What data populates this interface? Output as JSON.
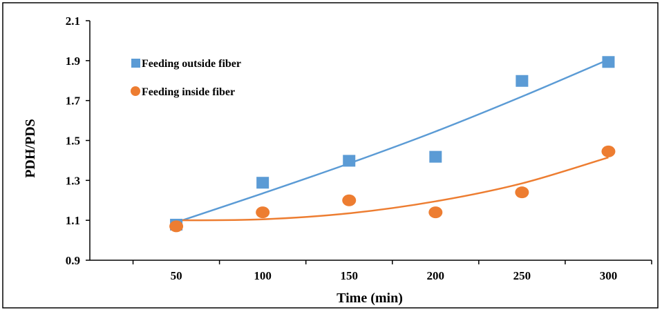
{
  "chart_data": {
    "type": "scatter",
    "xlabel": "Time (min)",
    "ylabel": "PDH/PDS",
    "x": [
      50,
      100,
      150,
      200,
      250,
      300
    ],
    "xlim": [
      0,
      325
    ],
    "ylim": [
      0.9,
      2.1
    ],
    "xticks": [
      "50",
      "100",
      "150",
      "200",
      "250",
      "300"
    ],
    "yticks": [
      "0.9",
      "1.1",
      "1.3",
      "1.5",
      "1.7",
      "1.9",
      "2.1"
    ],
    "grid": false,
    "legend_position": "top-left",
    "series": [
      {
        "name": "Feeding outside fiber",
        "marker": "square",
        "color": "#5b9bd5",
        "values": [
          1.08,
          1.29,
          1.4,
          1.42,
          1.8,
          1.895
        ],
        "trendline": "polynomial",
        "trend_values": [
          1.09,
          1.235,
          1.385,
          1.545,
          1.72,
          1.905
        ]
      },
      {
        "name": "Feeding inside fiber",
        "marker": "circle",
        "color": "#ed7d31",
        "values": [
          1.07,
          1.14,
          1.2,
          1.14,
          1.24,
          1.445
        ],
        "trendline": "polynomial",
        "trend_values": [
          1.1,
          1.105,
          1.135,
          1.195,
          1.285,
          1.415
        ]
      }
    ]
  }
}
